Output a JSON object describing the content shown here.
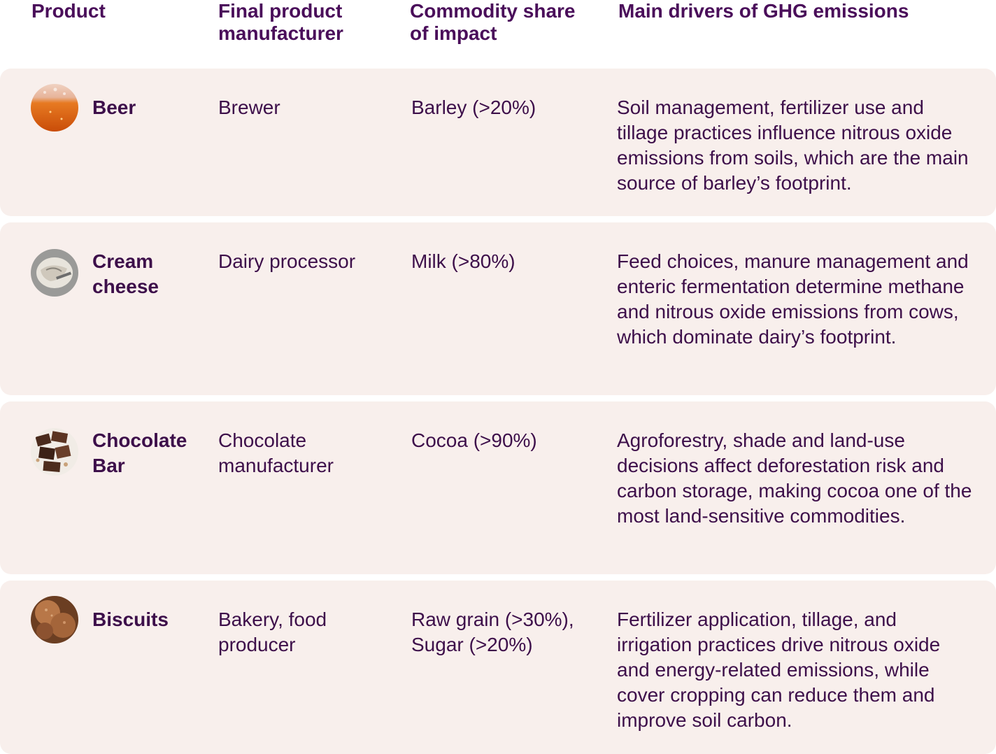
{
  "headers": {
    "product": "Product",
    "manufacturer": "Final product manufacturer",
    "commodity": "Commodity share of impact",
    "drivers": "Main drivers of GHG emissions"
  },
  "rows": [
    {
      "icon": "beer-icon",
      "product": "Beer",
      "manufacturer": "Brewer",
      "commodity": "Barley (>20%)",
      "drivers": "Soil management, fertilizer use and tillage practices influence nitrous oxide emissions from soils, which are the main source of barley’s footprint."
    },
    {
      "icon": "cream-cheese-icon",
      "product": "Cream cheese",
      "manufacturer": "Dairy processor",
      "commodity": "Milk (>80%)",
      "drivers": "Feed choices, manure management and enteric fermentation determine methane and nitrous oxide emissions from cows, which dominate dairy’s footprint."
    },
    {
      "icon": "chocolate-bar-icon",
      "product": "Chocolate Bar",
      "manufacturer": "Chocolate manufacturer",
      "commodity": "Cocoa (>90%)",
      "drivers": "Agroforestry, shade and land-use decisions affect deforestation risk and carbon storage, making cocoa one of the most land-sensitive commodities."
    },
    {
      "icon": "biscuits-icon",
      "product": "Biscuits",
      "manufacturer": "Bakery, food producer",
      "commodity": "Raw grain (>30%), Sugar (>20%)",
      "drivers": "Fertilizer application, tillage, and irrigation practices drive nitrous oxide and energy-related emissions, while cover cropping can reduce them and improve soil carbon."
    }
  ]
}
